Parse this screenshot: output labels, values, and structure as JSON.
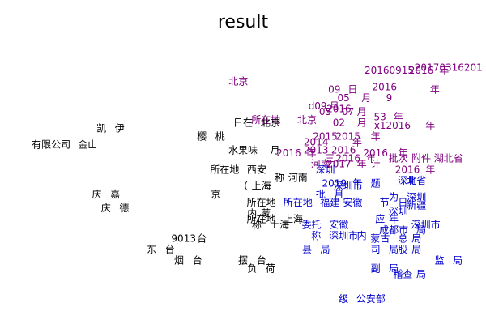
{
  "chart_data": {
    "type": "scatter",
    "title": "result",
    "xlabel": "",
    "ylabel": "",
    "xlim": [
      0,
      100
    ],
    "ylim": [
      0,
      100
    ],
    "grid": false,
    "axes_visible": false,
    "series": [
      {
        "color": "#800080",
        "points": [
          {
            "label": "北京",
            "x": 49,
            "y": 85
          },
          {
            "label": "20160915",
            "x": 82,
            "y": 89
          },
          {
            "label": "2016",
            "x": 89,
            "y": 89
          },
          {
            "label": "年",
            "x": 94,
            "y": 89
          },
          {
            "label": "20170316201",
            "x": 95,
            "y": 90
          },
          {
            "label": "09",
            "x": 70,
            "y": 82
          },
          {
            "label": "日",
            "x": 74,
            "y": 82
          },
          {
            "label": "2016",
            "x": 81,
            "y": 83
          },
          {
            "label": "年",
            "x": 92,
            "y": 82
          },
          {
            "label": "05",
            "x": 72,
            "y": 79
          },
          {
            "label": "月",
            "x": 77,
            "y": 79
          },
          {
            "label": "9",
            "x": 82,
            "y": 79
          },
          {
            "label": "d",
            "x": 65,
            "y": 76
          },
          {
            "label": "09",
            "x": 67,
            "y": 76
          },
          {
            "label": "月",
            "x": 70,
            "y": 76
          },
          {
            "label": "2016",
            "x": 71,
            "y": 75
          },
          {
            "label": "05",
            "x": 68,
            "y": 74
          },
          {
            "label": "07",
            "x": 73,
            "y": 74
          },
          {
            "label": "月",
            "x": 76,
            "y": 74
          },
          {
            "label": "所在地",
            "x": 55,
            "y": 71
          },
          {
            "label": "北京",
            "x": 64,
            "y": 71
          },
          {
            "label": "02",
            "x": 71,
            "y": 70
          },
          {
            "label": "月",
            "x": 76,
            "y": 70
          },
          {
            "label": "53",
            "x": 80,
            "y": 72
          },
          {
            "label": "年",
            "x": 84,
            "y": 72
          },
          {
            "label": "x1",
            "x": 80,
            "y": 69
          },
          {
            "label": "2016",
            "x": 84,
            "y": 69
          },
          {
            "label": "年",
            "x": 91,
            "y": 69
          },
          {
            "label": "2015",
            "x": 68,
            "y": 65
          },
          {
            "label": "2015",
            "x": 73,
            "y": 65
          },
          {
            "label": "年",
            "x": 79,
            "y": 65
          },
          {
            "label": "2014",
            "x": 66,
            "y": 63
          },
          {
            "label": "年",
            "x": 75,
            "y": 63
          },
          {
            "label": "2016",
            "x": 60,
            "y": 59
          },
          {
            "label": "年",
            "x": 65,
            "y": 59
          },
          {
            "label": "2013",
            "x": 66,
            "y": 60
          },
          {
            "label": "2016",
            "x": 72,
            "y": 60
          },
          {
            "label": "2016",
            "x": 79,
            "y": 59
          },
          {
            "label": "年",
            "x": 85,
            "y": 59
          },
          {
            "label": "三",
            "x": 69,
            "y": 57
          },
          {
            "label": "2016",
            "x": 73,
            "y": 57
          },
          {
            "label": "年",
            "x": 78,
            "y": 57
          },
          {
            "label": "批次",
            "x": 84,
            "y": 57
          },
          {
            "label": "附件",
            "x": 89,
            "y": 57
          },
          {
            "label": "湖北省",
            "x": 95,
            "y": 57
          },
          {
            "label": "河南",
            "x": 67,
            "y": 55
          },
          {
            "label": "2017",
            "x": 71,
            "y": 55
          },
          {
            "label": "年",
            "x": 76,
            "y": 55
          },
          {
            "label": "计",
            "x": 79,
            "y": 55
          },
          {
            "label": "2016",
            "x": 86,
            "y": 53
          },
          {
            "label": "年",
            "x": 91,
            "y": 53
          }
        ]
      },
      {
        "color": "#000000",
        "points": [
          {
            "label": "凯",
            "x": 19,
            "y": 68
          },
          {
            "label": "伊",
            "x": 23,
            "y": 68
          },
          {
            "label": "日在",
            "x": 50,
            "y": 70
          },
          {
            "label": "北京",
            "x": 56,
            "y": 70
          },
          {
            "label": "樱",
            "x": 41,
            "y": 65
          },
          {
            "label": "桃",
            "x": 45,
            "y": 65
          },
          {
            "label": "有限公司",
            "x": 8,
            "y": 62
          },
          {
            "label": "金山",
            "x": 16,
            "y": 62
          },
          {
            "label": "水果味",
            "x": 50,
            "y": 60
          },
          {
            "label": "月",
            "x": 57,
            "y": 60
          },
          {
            "label": "所在地",
            "x": 46,
            "y": 53
          },
          {
            "label": "西安",
            "x": 53,
            "y": 53
          },
          {
            "label": "称",
            "x": 58,
            "y": 50
          },
          {
            "label": "河南",
            "x": 62,
            "y": 50
          },
          {
            "label": "（",
            "x": 50,
            "y": 47
          },
          {
            "label": "上海",
            "x": 54,
            "y": 47
          },
          {
            "label": "庆",
            "x": 18,
            "y": 44
          },
          {
            "label": "嘉",
            "x": 22,
            "y": 44
          },
          {
            "label": "京",
            "x": 44,
            "y": 44
          },
          {
            "label": "所在地",
            "x": 54,
            "y": 41
          },
          {
            "label": "庆",
            "x": 20,
            "y": 39
          },
          {
            "label": "德",
            "x": 24,
            "y": 39
          },
          {
            "label": "内",
            "x": 52,
            "y": 37
          },
          {
            "label": "蒙",
            "x": 55,
            "y": 37
          },
          {
            "label": "所在地",
            "x": 54,
            "y": 35
          },
          {
            "label": "上海",
            "x": 61,
            "y": 35
          },
          {
            "label": "称",
            "x": 53,
            "y": 33
          },
          {
            "label": "上海",
            "x": 58,
            "y": 33
          },
          {
            "label": "9013",
            "x": 37,
            "y": 28
          },
          {
            "label": "台",
            "x": 41,
            "y": 28
          },
          {
            "label": "东",
            "x": 30,
            "y": 24
          },
          {
            "label": "台",
            "x": 34,
            "y": 24
          },
          {
            "label": "烟",
            "x": 36,
            "y": 20
          },
          {
            "label": "台",
            "x": 40,
            "y": 20
          },
          {
            "label": "摆",
            "x": 50,
            "y": 20
          },
          {
            "label": "台",
            "x": 54,
            "y": 20
          },
          {
            "label": "负",
            "x": 52,
            "y": 17
          },
          {
            "label": "荷",
            "x": 56,
            "y": 17
          }
        ]
      },
      {
        "color": "#0000cd",
        "points": [
          {
            "label": "深圳",
            "x": 68,
            "y": 53
          },
          {
            "label": "2019",
            "x": 70,
            "y": 48
          },
          {
            "label": "年",
            "x": 75,
            "y": 48
          },
          {
            "label": "题",
            "x": 79,
            "y": 48
          },
          {
            "label": "深圳市",
            "x": 73,
            "y": 47
          },
          {
            "label": "深圳",
            "x": 86,
            "y": 49
          },
          {
            "label": "北省",
            "x": 88,
            "y": 49
          },
          {
            "label": "为",
            "x": 83,
            "y": 43
          },
          {
            "label": "深圳",
            "x": 88,
            "y": 43
          },
          {
            "label": "批",
            "x": 67,
            "y": 44
          },
          {
            "label": "月",
            "x": 71,
            "y": 44
          },
          {
            "label": "所在地",
            "x": 62,
            "y": 41
          },
          {
            "label": "福建",
            "x": 69,
            "y": 41
          },
          {
            "label": "安徽",
            "x": 74,
            "y": 41
          },
          {
            "label": "节",
            "x": 81,
            "y": 41
          },
          {
            "label": "日",
            "x": 85,
            "y": 41
          },
          {
            "label": "新疆",
            "x": 88,
            "y": 40
          },
          {
            "label": "深圳",
            "x": 84,
            "y": 38
          },
          {
            "label": "应",
            "x": 80,
            "y": 35
          },
          {
            "label": "年",
            "x": 83,
            "y": 35
          },
          {
            "label": "委托",
            "x": 65,
            "y": 33
          },
          {
            "label": "安徽",
            "x": 71,
            "y": 33
          },
          {
            "label": "深圳市",
            "x": 90,
            "y": 33
          },
          {
            "label": "成都市",
            "x": 83,
            "y": 31
          },
          {
            "label": "局",
            "x": 89,
            "y": 31
          },
          {
            "label": "称",
            "x": 66,
            "y": 29
          },
          {
            "label": "深圳市",
            "x": 72,
            "y": 29
          },
          {
            "label": "内",
            "x": 76,
            "y": 29
          },
          {
            "label": "蒙古",
            "x": 80,
            "y": 28
          },
          {
            "label": "总",
            "x": 85,
            "y": 28
          },
          {
            "label": "局",
            "x": 88,
            "y": 28
          },
          {
            "label": "县",
            "x": 64,
            "y": 24
          },
          {
            "label": "局",
            "x": 68,
            "y": 24
          },
          {
            "label": "司",
            "x": 79,
            "y": 24
          },
          {
            "label": "局",
            "x": 83,
            "y": 24
          },
          {
            "label": "股",
            "x": 85,
            "y": 24
          },
          {
            "label": "局",
            "x": 88,
            "y": 24
          },
          {
            "label": "监",
            "x": 93,
            "y": 20
          },
          {
            "label": "局",
            "x": 97,
            "y": 20
          },
          {
            "label": "副",
            "x": 79,
            "y": 17
          },
          {
            "label": "局",
            "x": 83,
            "y": 17
          },
          {
            "label": "稽查",
            "x": 85,
            "y": 15
          },
          {
            "label": "局",
            "x": 89,
            "y": 15
          },
          {
            "label": "级",
            "x": 72,
            "y": 6
          },
          {
            "label": "公安部",
            "x": 78,
            "y": 6
          }
        ]
      }
    ]
  }
}
